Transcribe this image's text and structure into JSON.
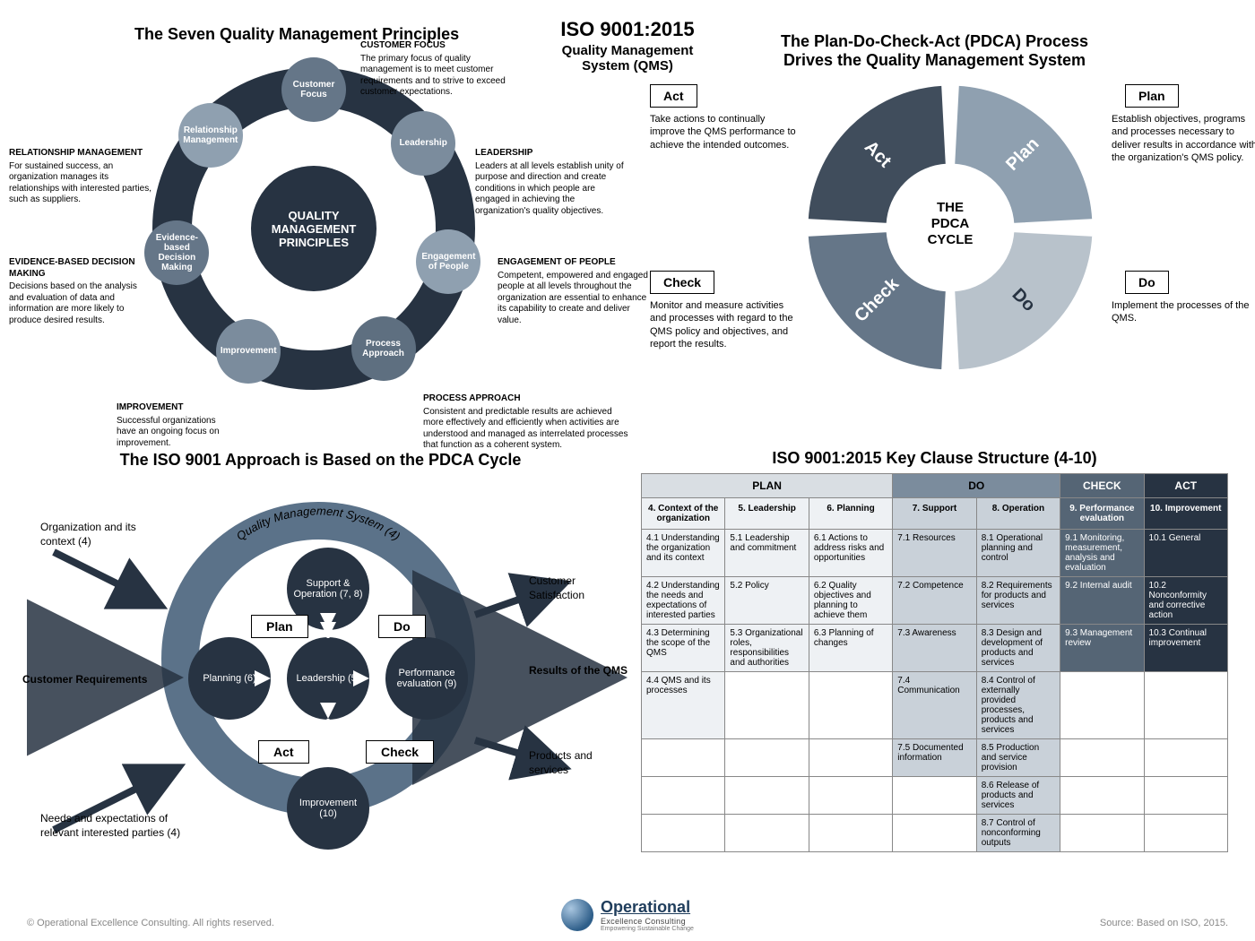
{
  "colors": {
    "darkNavy": "#273342",
    "slate1": "#657688",
    "slate2": "#7b8c9d",
    "slate3": "#8fa0b0",
    "slate4": "#5e6f80",
    "ringBlue": "#5b7289",
    "nodeDark": "#273342",
    "checkCol": "#556575",
    "actCol": "#273342",
    "doHead": "#7b8c9d",
    "planHead": "#d9dee3",
    "tableBorder": "#888888",
    "pdcaPlan": "#8fa0b0",
    "pdcaDo": "#b8c2cb",
    "pdcaCheck": "#657688",
    "pdcaAct": "#404d5c"
  },
  "topTitle": {
    "line1": "ISO 9001:2015",
    "line2": "Quality Management",
    "line3": "System (QMS)"
  },
  "q1": {
    "heading": "The Seven Quality Management Principles",
    "hub": "QUALITY MANAGEMENT PRINCIPLES",
    "principles": [
      {
        "short": "Customer Focus",
        "title": "CUSTOMER FOCUS",
        "desc": "The primary focus of quality management is to meet customer requirements and to strive to exceed customer expectations."
      },
      {
        "short": "Leadership",
        "title": "LEADERSHIP",
        "desc": "Leaders at all levels establish unity of purpose and direction and create conditions in which people are engaged in achieving the organization's quality objectives."
      },
      {
        "short": "Engagement of People",
        "title": "ENGAGEMENT OF PEOPLE",
        "desc": "Competent, empowered and engaged people at all levels throughout the organization are essential to enhance its capability to create and deliver value."
      },
      {
        "short": "Process Approach",
        "title": "PROCESS APPROACH",
        "desc": "Consistent and predictable results are achieved more effectively and efficiently when activities are understood and managed as interrelated processes that function as a coherent system."
      },
      {
        "short": "Improvement",
        "title": "IMPROVEMENT",
        "desc": "Successful organizations have an ongoing focus on improvement."
      },
      {
        "short": "Evidence-based Decision Making",
        "title": "EVIDENCE-BASED DECISION MAKING",
        "desc": "Decisions based on the analysis and evaluation of data and information are more likely to produce desired results."
      },
      {
        "short": "Relationship Management",
        "title": "RELATIONSHIP MANAGEMENT",
        "desc": "For sustained success, an organization manages its relationships with interested parties, such as suppliers."
      }
    ],
    "petalColors": [
      "#657688",
      "#7b8c9d",
      "#8fa0b0",
      "#5e6f80",
      "#7b8c9d",
      "#657688",
      "#8fa0b0"
    ]
  },
  "q2": {
    "heading1": "The Plan-Do-Check-Act (PDCA) Process",
    "heading2": "Drives the Quality Management System",
    "centerLine1": "THE",
    "centerLine2": "PDCA",
    "centerLine3": "CYCLE",
    "items": {
      "plan": {
        "label": "Plan",
        "desc": "Establish objectives, programs and processes necessary to deliver results in accordance with the organization's QMS policy."
      },
      "do": {
        "label": "Do",
        "desc": "Implement the processes of the QMS."
      },
      "check": {
        "label": "Check",
        "desc": "Monitor and measure activities and processes with regard to the QMS policy and objectives, and report the results."
      },
      "act": {
        "label": "Act",
        "desc": "Take actions to continually improve the QMS performance to achieve the intended outcomes."
      }
    }
  },
  "q3": {
    "heading": "The ISO 9001 Approach is Based on the PDCA Cycle",
    "outerTop": "Quality Management System (4)",
    "nodes": {
      "support": "Support & Operation (7, 8)",
      "perf": "Performance evaluation (9)",
      "improve": "Improvement (10)",
      "planning": "Planning (6)",
      "leadership": "Leadership (5)"
    },
    "boxes": {
      "plan": "Plan",
      "do": "Do",
      "check": "Check",
      "act": "Act"
    },
    "left1": "Organization and its context (4)",
    "left2": "Customer Requirements",
    "left3": "Needs and expectations of relevant interested parties (4)",
    "right1": "Customer Satisfaction",
    "right2": "Results of the QMS",
    "right3": "Products and services"
  },
  "q4": {
    "heading": "ISO 9001:2015 Key Clause Structure (4-10)",
    "groups": [
      "PLAN",
      "DO",
      "CHECK",
      "ACT"
    ],
    "groupSpans": [
      3,
      2,
      1,
      1
    ],
    "groupBg": [
      "#d9dee3",
      "#7b8c9d",
      "#556575",
      "#273342"
    ],
    "groupFg": [
      "#000",
      "#000",
      "#fff",
      "#fff"
    ],
    "cols": [
      "4. Context of the organization",
      "5. Leadership",
      "6. Planning",
      "7. Support",
      "8. Operation",
      "9. Performance evaluation",
      "10. Improvement"
    ],
    "colBg": [
      "#eef1f4",
      "#eef1f4",
      "#eef1f4",
      "#c9d1d9",
      "#c9d1d9",
      "#556575",
      "#273342"
    ],
    "colFg": [
      "#000",
      "#000",
      "#000",
      "#000",
      "#000",
      "#fff",
      "#fff"
    ],
    "rows": [
      [
        "4.1 Understanding the organization and its context",
        "5.1 Leadership and commitment",
        "6.1 Actions to address risks and opportunities",
        "7.1 Resources",
        "8.1 Operational planning and control",
        "9.1 Monitoring, measurement, analysis and evaluation",
        "10.1 General"
      ],
      [
        "4.2 Understanding the needs and expectations of interested parties",
        "5.2 Policy",
        "6.2 Quality objectives and planning to achieve them",
        "7.2 Competence",
        "8.2 Requirements for products and services",
        "9.2 Internal audit",
        "10.2 Nonconformity and corrective action"
      ],
      [
        "4.3 Determining the scope of the QMS",
        "5.3 Organizational roles, responsibilities and authorities",
        "6.3 Planning of changes",
        "7.3 Awareness",
        "8.3 Design and development of products and services",
        "9.3 Management review",
        "10.3 Continual improvement"
      ],
      [
        "4.4 QMS and its processes",
        "",
        "",
        "7.4 Communication",
        "8.4 Control of externally provided processes, products and services",
        "",
        ""
      ],
      [
        "",
        "",
        "",
        "7.5 Documented information",
        "8.5 Production and service provision",
        "",
        ""
      ],
      [
        "",
        "",
        "",
        "",
        "8.6 Release of products and services",
        "",
        ""
      ],
      [
        "",
        "",
        "",
        "",
        "8.7 Control of nonconforming outputs",
        "",
        ""
      ]
    ]
  },
  "footer": {
    "copyright": "© Operational Excellence Consulting. All rights reserved.",
    "source": "Source: Based on ISO, 2015.",
    "brand1": "Operational",
    "brand2": "Excellence Consulting",
    "brand3": "Empowering Sustainable Change"
  }
}
